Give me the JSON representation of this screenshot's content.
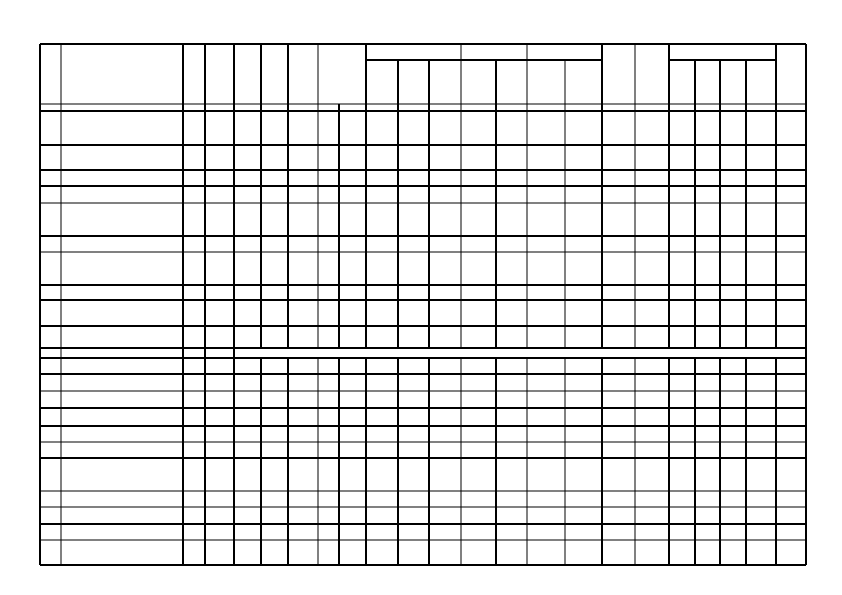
{
  "document": {
    "type": "blank-table-form",
    "line_color": "#000000",
    "background": "#ffffff",
    "cells_text": []
  }
}
